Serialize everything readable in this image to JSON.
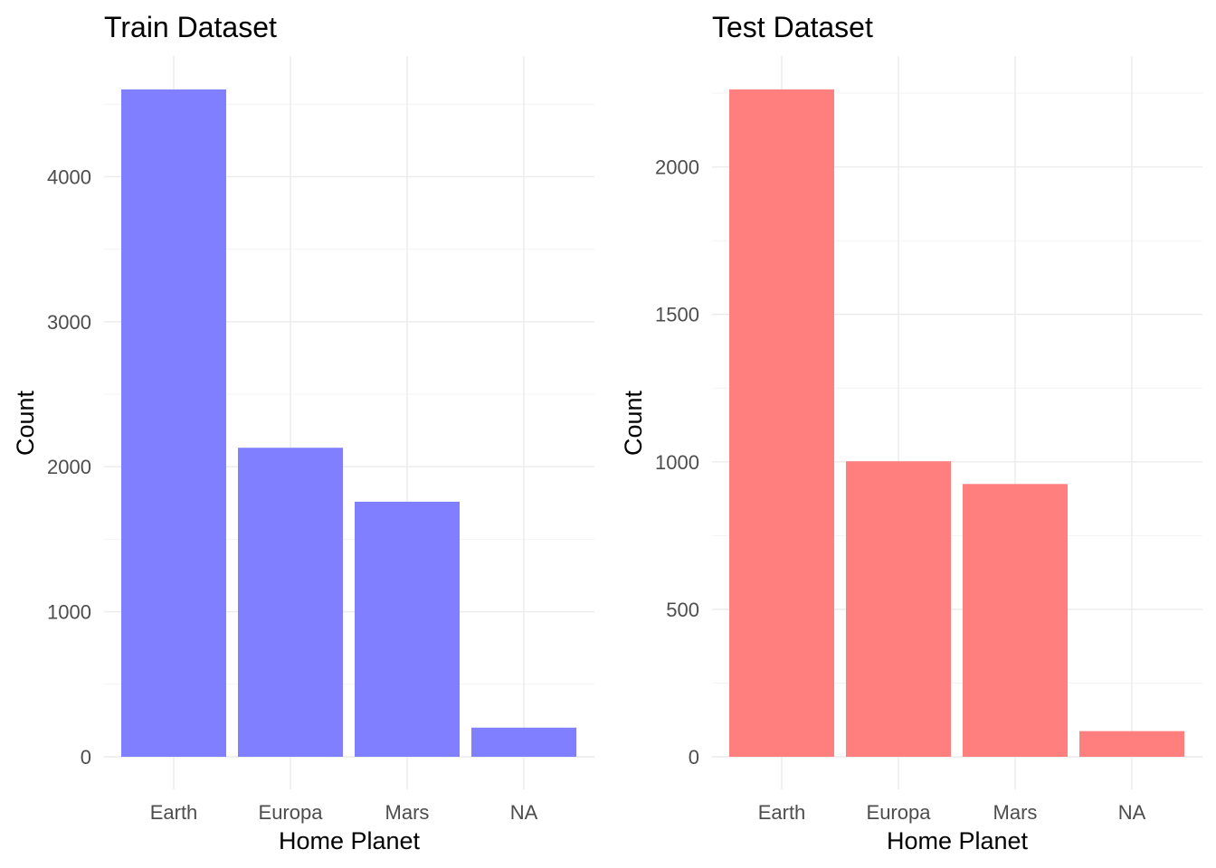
{
  "chart_data": [
    {
      "type": "bar",
      "title": "Train Dataset",
      "xlabel": "Home Planet",
      "ylabel": "Count",
      "categories": [
        "Earth",
        "Europa",
        "Mars",
        "NA"
      ],
      "values": [
        4602,
        2131,
        1759,
        201
      ],
      "ylim": [
        0,
        4832
      ],
      "yticks": [
        0,
        1000,
        2000,
        3000,
        4000
      ],
      "color": "#7f7fff",
      "grid": true,
      "legend": "none"
    },
    {
      "type": "bar",
      "title": "Test Dataset",
      "xlabel": "Home Planet",
      "ylabel": "Count",
      "categories": [
        "Earth",
        "Europa",
        "Mars",
        "NA"
      ],
      "values": [
        2263,
        1002,
        925,
        87
      ],
      "ylim": [
        0,
        2376
      ],
      "yticks": [
        0,
        500,
        1000,
        1500,
        2000
      ],
      "color": "#ff7f7f",
      "grid": true,
      "legend": "none"
    }
  ]
}
